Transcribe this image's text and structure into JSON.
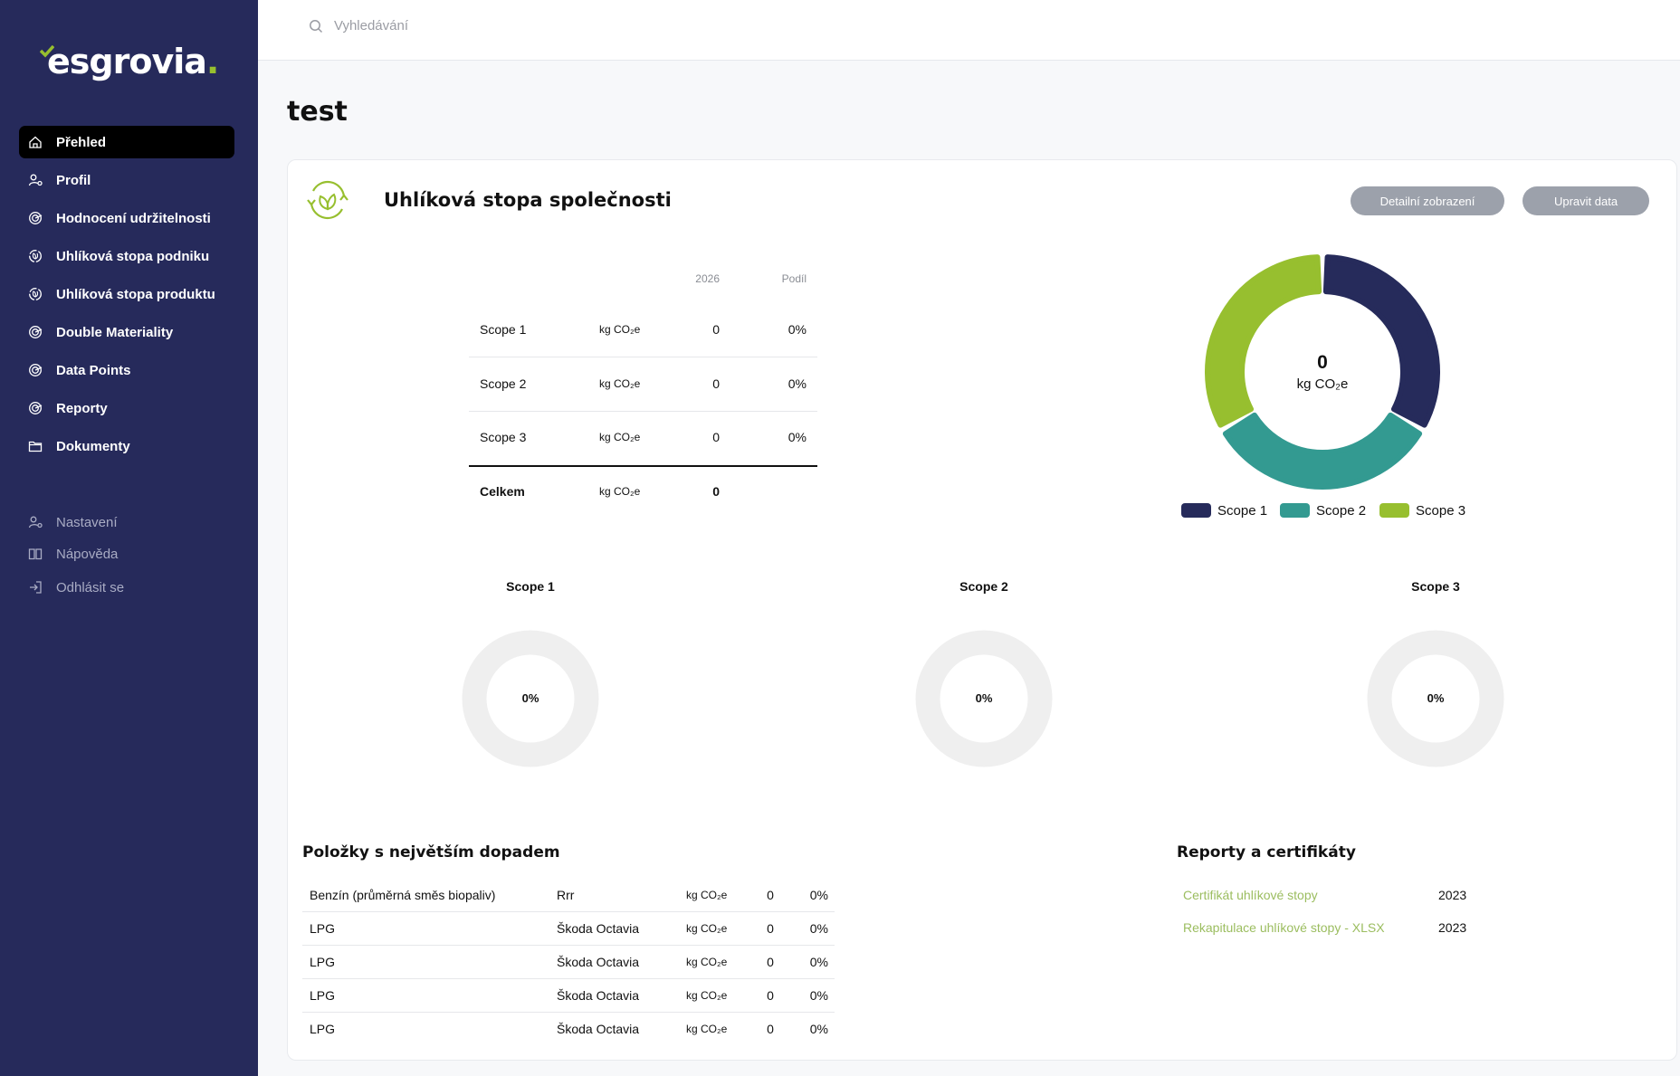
{
  "brand": {
    "logo_text": "esgrovia",
    "logo_dot": ".",
    "accent": "#97bf2f"
  },
  "sidebar": {
    "items": [
      {
        "label": "Přehled",
        "icon": "home-icon",
        "active": true
      },
      {
        "label": "Profil",
        "icon": "user-icon"
      },
      {
        "label": "Hodnocení udržitelnosti",
        "icon": "target-icon"
      },
      {
        "label": "Uhlíková stopa podniku",
        "icon": "leaf-cycle-icon"
      },
      {
        "label": "Uhlíková stopa produktu",
        "icon": "leaf-cycle-icon"
      },
      {
        "label": "Double Materiality",
        "icon": "target-icon"
      },
      {
        "label": "Data Points",
        "icon": "target-icon"
      },
      {
        "label": "Reporty",
        "icon": "target-icon"
      },
      {
        "label": "Dokumenty",
        "icon": "folder-icon"
      }
    ],
    "secondary": [
      {
        "label": "Nastavení",
        "icon": "user-settings-icon"
      },
      {
        "label": "Nápověda",
        "icon": "book-icon"
      },
      {
        "label": "Odhlásit se",
        "icon": "logout-icon"
      }
    ]
  },
  "header": {
    "search_placeholder": "Vyhledávání"
  },
  "page": {
    "title": "test"
  },
  "card": {
    "title": "Uhlíková stopa společnosti",
    "buttons": {
      "detail": "Detailní zobrazení",
      "edit": "Upravit data"
    },
    "table": {
      "headers": {
        "year": "2026",
        "share": "Podíl"
      },
      "rows": [
        {
          "label": "Scope 1",
          "unit": "kg CO₂e",
          "value": "0",
          "share": "0%"
        },
        {
          "label": "Scope 2",
          "unit": "kg CO₂e",
          "value": "0",
          "share": "0%"
        },
        {
          "label": "Scope 3",
          "unit": "kg CO₂e",
          "value": "0",
          "share": "0%"
        }
      ],
      "total": {
        "label": "Celkem",
        "unit": "kg CO₂e",
        "value": "0"
      }
    },
    "donut": {
      "center_value": "0",
      "center_unit": "kg CO₂e",
      "segments": [
        {
          "name": "Scope 1",
          "color": "#262b5b"
        },
        {
          "name": "Scope 2",
          "color": "#339a91"
        },
        {
          "name": "Scope 3",
          "color": "#97bf2f"
        }
      ]
    },
    "scope_charts": [
      {
        "title": "Scope 1",
        "value": "0%",
        "percent": 0
      },
      {
        "title": "Scope 2",
        "value": "0%",
        "percent": 0
      },
      {
        "title": "Scope 3",
        "value": "0%",
        "percent": 0
      }
    ],
    "impact": {
      "title": "Položky s největším dopadem",
      "rows": [
        {
          "name": "Benzín (průměrná směs biopaliv)",
          "source": "Rrr",
          "unit": "kg CO₂e",
          "value": "0",
          "share": "0%"
        },
        {
          "name": "LPG",
          "source": "Škoda Octavia",
          "unit": "kg CO₂e",
          "value": "0",
          "share": "0%"
        },
        {
          "name": "LPG",
          "source": "Škoda Octavia",
          "unit": "kg CO₂e",
          "value": "0",
          "share": "0%"
        },
        {
          "name": "LPG",
          "source": "Škoda Octavia",
          "unit": "kg CO₂e",
          "value": "0",
          "share": "0%"
        },
        {
          "name": "LPG",
          "source": "Škoda Octavia",
          "unit": "kg CO₂e",
          "value": "0",
          "share": "0%"
        }
      ]
    },
    "reports": {
      "title": "Reporty a certifikáty",
      "items": [
        {
          "label": "Certifikát uhlíkové stopy",
          "year": "2023"
        },
        {
          "label": "Rekapitulace uhlíkové stopy - XLSX",
          "year": "2023"
        }
      ]
    }
  }
}
